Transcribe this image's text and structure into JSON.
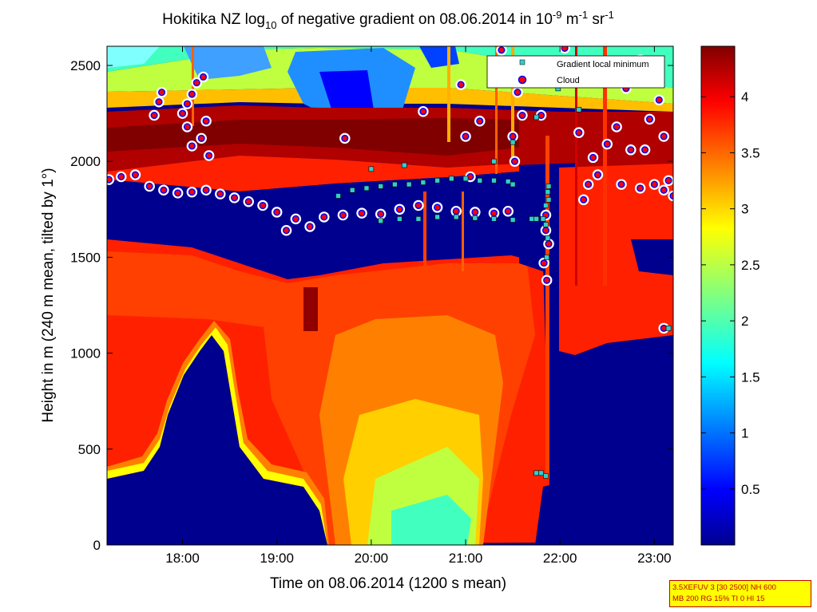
{
  "chart_data": {
    "type": "heatmap",
    "title": {
      "pre": "Hokitika NZ log",
      "sub10": "10",
      "mid": " of negative gradient on 08.06.2014 in 10",
      "sup1": "-9",
      "unit_m": " m",
      "sup2": "-1",
      "unit_sr": " sr",
      "sup3": "-1"
    },
    "xlabel": "Time on 08.06.2014 (1200 s mean)",
    "ylabel": "Height in m (240 m mean, tilted by 1°)",
    "x_range_hours": [
      17.2,
      23.2
    ],
    "x_ticks": [
      18,
      19,
      20,
      21,
      22,
      23
    ],
    "x_tick_labels": [
      "18:00",
      "19:00",
      "20:00",
      "21:00",
      "22:00",
      "23:00"
    ],
    "ylim": [
      0,
      2600
    ],
    "y_ticks": [
      0,
      500,
      1000,
      1500,
      2000,
      2500
    ],
    "y_tick_labels": [
      "0",
      "500",
      "1000",
      "1500",
      "2000",
      "2500"
    ],
    "colorbar": {
      "range": [
        0,
        4.45
      ],
      "ticks": [
        0.5,
        1,
        1.5,
        2,
        2.5,
        3,
        3.5,
        4
      ],
      "tick_labels": [
        "0.5",
        "1",
        "1.5",
        "2",
        "2.5",
        "3",
        "3.5",
        "4"
      ],
      "colormap": "jet"
    },
    "legend": {
      "placement": "top-right",
      "entries": [
        {
          "label": "Gradient local minimum",
          "marker": "square",
          "color": "#33cccc"
        },
        {
          "label": "Cloud",
          "marker": "circle",
          "color": "#ff0000",
          "edge": "#0000ff"
        }
      ]
    },
    "series": [
      {
        "name": "Cloud",
        "points": [
          [
            17.22,
            1905
          ],
          [
            17.35,
            1920
          ],
          [
            17.5,
            1930
          ],
          [
            17.65,
            1870
          ],
          [
            17.8,
            1850
          ],
          [
            17.95,
            1835
          ],
          [
            18.1,
            1840
          ],
          [
            18.25,
            1850
          ],
          [
            18.4,
            1830
          ],
          [
            18.55,
            1810
          ],
          [
            18.7,
            1790
          ],
          [
            18.85,
            1770
          ],
          [
            19.0,
            1735
          ],
          [
            19.1,
            1640
          ],
          [
            19.2,
            1700
          ],
          [
            19.35,
            1660
          ],
          [
            19.5,
            1710
          ],
          [
            19.7,
            1720
          ],
          [
            19.9,
            1730
          ],
          [
            20.1,
            1725
          ],
          [
            20.3,
            1750
          ],
          [
            20.5,
            1770
          ],
          [
            20.7,
            1760
          ],
          [
            20.9,
            1740
          ],
          [
            21.1,
            1735
          ],
          [
            21.3,
            1730
          ],
          [
            21.45,
            1740
          ],
          [
            17.7,
            2240
          ],
          [
            17.75,
            2310
          ],
          [
            17.78,
            2360
          ],
          [
            18.0,
            2250
          ],
          [
            18.05,
            2300
          ],
          [
            18.1,
            2350
          ],
          [
            18.15,
            2410
          ],
          [
            18.22,
            2440
          ],
          [
            18.2,
            2120
          ],
          [
            18.25,
            2210
          ],
          [
            18.28,
            2030
          ],
          [
            18.05,
            2180
          ],
          [
            18.1,
            2080
          ],
          [
            19.72,
            2120
          ],
          [
            21.15,
            2210
          ],
          [
            21.05,
            1920
          ],
          [
            20.55,
            2260
          ],
          [
            20.95,
            2400
          ],
          [
            21.0,
            2130
          ],
          [
            21.38,
            2580
          ],
          [
            21.5,
            2130
          ],
          [
            21.6,
            2240
          ],
          [
            21.55,
            2360
          ],
          [
            21.52,
            2000
          ],
          [
            21.85,
            1720
          ],
          [
            21.88,
            1570
          ],
          [
            21.83,
            1470
          ],
          [
            21.86,
            1380
          ],
          [
            21.85,
            1640
          ],
          [
            21.8,
            2240
          ],
          [
            21.95,
            2500
          ],
          [
            22.05,
            2590
          ],
          [
            22.2,
            2150
          ],
          [
            22.35,
            2020
          ],
          [
            22.4,
            1930
          ],
          [
            22.3,
            1880
          ],
          [
            22.25,
            1800
          ],
          [
            22.5,
            2090
          ],
          [
            22.6,
            2180
          ],
          [
            22.75,
            2060
          ],
          [
            22.9,
            2060
          ],
          [
            22.95,
            2220
          ],
          [
            23.05,
            2320
          ],
          [
            23.1,
            2130
          ],
          [
            22.65,
            1880
          ],
          [
            22.85,
            1860
          ],
          [
            23.0,
            1880
          ],
          [
            23.1,
            1850
          ],
          [
            23.15,
            1900
          ],
          [
            23.2,
            1820
          ],
          [
            22.7,
            2380
          ],
          [
            22.95,
            2440
          ],
          [
            23.1,
            1130
          ],
          [
            22.85,
            2530
          ]
        ]
      },
      {
        "name": "Gradient local minimum",
        "points": [
          [
            19.65,
            1820
          ],
          [
            19.8,
            1850
          ],
          [
            19.95,
            1860
          ],
          [
            20.1,
            1870
          ],
          [
            20.25,
            1880
          ],
          [
            20.4,
            1880
          ],
          [
            20.55,
            1890
          ],
          [
            20.7,
            1900
          ],
          [
            20.85,
            1910
          ],
          [
            21.0,
            1910
          ],
          [
            21.15,
            1900
          ],
          [
            21.3,
            1900
          ],
          [
            21.45,
            1895
          ],
          [
            21.5,
            1880
          ],
          [
            20.1,
            1690
          ],
          [
            20.3,
            1700
          ],
          [
            20.5,
            1700
          ],
          [
            20.7,
            1710
          ],
          [
            20.9,
            1710
          ],
          [
            21.1,
            1705
          ],
          [
            21.3,
            1700
          ],
          [
            21.5,
            1695
          ],
          [
            21.7,
            1700
          ],
          [
            21.82,
            1700
          ],
          [
            20.0,
            1960
          ],
          [
            20.35,
            1980
          ],
          [
            21.3,
            2000
          ],
          [
            21.5,
            2100
          ],
          [
            21.75,
            2230
          ],
          [
            21.88,
            1870
          ],
          [
            21.87,
            1840
          ],
          [
            21.88,
            1800
          ],
          [
            21.85,
            1770
          ],
          [
            21.75,
            1700
          ],
          [
            21.86,
            1500
          ],
          [
            21.87,
            1600
          ],
          [
            21.85,
            1670
          ],
          [
            21.75,
            375
          ],
          [
            21.8,
            375
          ],
          [
            21.85,
            360
          ],
          [
            21.9,
            2470
          ],
          [
            22.0,
            2420
          ],
          [
            21.98,
            2380
          ],
          [
            23.15,
            1130
          ],
          [
            22.2,
            2270
          ]
        ]
      }
    ]
  },
  "info_box": {
    "line1": "3.5XEFUV 3 [30 2500] NH 600",
    "line2": "MB 200 RG 15% TI 0 HI 15"
  }
}
